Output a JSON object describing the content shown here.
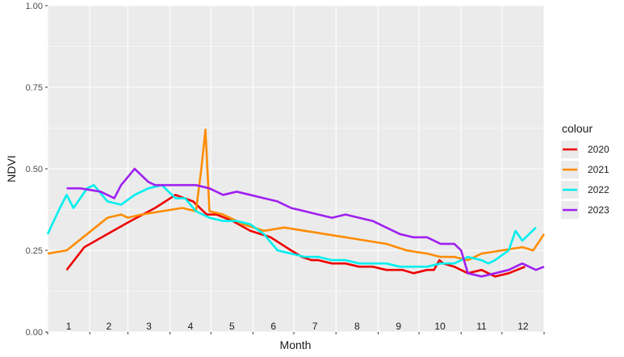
{
  "chart_data": {
    "type": "line",
    "xlabel": "Month",
    "ylabel": "NDVI",
    "ylim": [
      0,
      1
    ],
    "xlim": [
      1,
      366
    ],
    "grid": true,
    "legend": {
      "title": "colour",
      "position": "right"
    },
    "y_ticks": [
      "0.00",
      "0.25",
      "0.50",
      "0.75",
      "1.00"
    ],
    "y_tick_values": [
      0,
      0.25,
      0.5,
      0.75,
      1
    ],
    "month_labels": [
      "1",
      "2",
      "3",
      "4",
      "5",
      "6",
      "7",
      "8",
      "9",
      "10",
      "11",
      "12"
    ],
    "x_unit": "day of year",
    "series": [
      {
        "name": "2020",
        "color": "#ee0000",
        "x": [
          15,
          28,
          45,
          62,
          80,
          95,
          108,
          118,
          125,
          137,
          150,
          165,
          180,
          188,
          195,
          200,
          210,
          220,
          230,
          240,
          250,
          262,
          270,
          280,
          285,
          289,
          292,
          300,
          310,
          320,
          330,
          340,
          352
        ],
        "y": [
          0.19,
          0.26,
          0.3,
          0.34,
          0.38,
          0.42,
          0.4,
          0.36,
          0.36,
          0.34,
          0.31,
          0.29,
          0.25,
          0.23,
          0.22,
          0.22,
          0.21,
          0.21,
          0.2,
          0.2,
          0.19,
          0.19,
          0.18,
          0.19,
          0.19,
          0.22,
          0.21,
          0.2,
          0.18,
          0.19,
          0.17,
          0.18,
          0.2
        ]
      },
      {
        "name": "2021",
        "color": "#ff8c00",
        "x": [
          1,
          15,
          30,
          45,
          55,
          60,
          70,
          85,
          100,
          110,
          114,
          117,
          120,
          130,
          145,
          160,
          175,
          190,
          205,
          220,
          235,
          250,
          265,
          280,
          290,
          300,
          310,
          320,
          335,
          350,
          358,
          366
        ],
        "y": [
          0.24,
          0.25,
          0.3,
          0.35,
          0.36,
          0.35,
          0.36,
          0.37,
          0.38,
          0.37,
          0.5,
          0.62,
          0.37,
          0.36,
          0.33,
          0.31,
          0.32,
          0.31,
          0.3,
          0.29,
          0.28,
          0.27,
          0.25,
          0.24,
          0.23,
          0.23,
          0.22,
          0.24,
          0.25,
          0.26,
          0.25,
          0.3
        ]
      },
      {
        "name": "2022",
        "color": "#00eeee",
        "x": [
          1,
          10,
          15,
          20,
          30,
          35,
          45,
          55,
          65,
          75,
          85,
          95,
          102,
          110,
          120,
          130,
          140,
          150,
          160,
          170,
          180,
          190,
          200,
          210,
          220,
          230,
          240,
          250,
          260,
          270,
          280,
          290,
          300,
          310,
          320,
          325,
          330,
          340,
          345,
          350,
          355,
          360
        ],
        "y": [
          0.3,
          0.38,
          0.42,
          0.38,
          0.44,
          0.45,
          0.4,
          0.39,
          0.42,
          0.44,
          0.45,
          0.41,
          0.41,
          0.37,
          0.35,
          0.34,
          0.34,
          0.33,
          0.3,
          0.25,
          0.24,
          0.23,
          0.23,
          0.22,
          0.22,
          0.21,
          0.21,
          0.21,
          0.2,
          0.2,
          0.2,
          0.21,
          0.21,
          0.23,
          0.22,
          0.21,
          0.22,
          0.25,
          0.31,
          0.28,
          0.3,
          0.32
        ]
      },
      {
        "name": "2023",
        "color": "#a020f0",
        "x": [
          15,
          25,
          40,
          50,
          55,
          65,
          75,
          80,
          90,
          100,
          110,
          120,
          130,
          140,
          150,
          160,
          170,
          180,
          190,
          200,
          210,
          220,
          230,
          240,
          250,
          260,
          270,
          280,
          290,
          300,
          305,
          310,
          320,
          330,
          340,
          345,
          350,
          355,
          360,
          366
        ],
        "y": [
          0.44,
          0.44,
          0.43,
          0.41,
          0.45,
          0.5,
          0.46,
          0.45,
          0.45,
          0.45,
          0.45,
          0.44,
          0.42,
          0.43,
          0.42,
          0.41,
          0.4,
          0.38,
          0.37,
          0.36,
          0.35,
          0.36,
          0.35,
          0.34,
          0.32,
          0.3,
          0.29,
          0.29,
          0.27,
          0.27,
          0.25,
          0.18,
          0.17,
          0.18,
          0.19,
          0.2,
          0.21,
          0.2,
          0.19,
          0.2
        ]
      }
    ]
  }
}
